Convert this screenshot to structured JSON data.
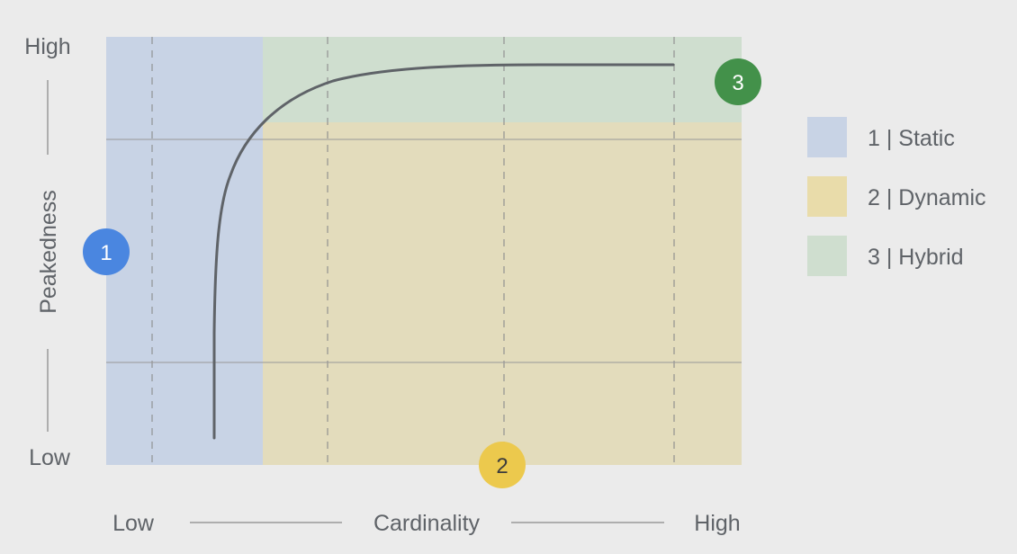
{
  "y_axis": {
    "label": "Peakedness",
    "high_label": "High",
    "low_label": "Low"
  },
  "x_axis": {
    "label": "Cardinality",
    "low_label": "Low",
    "high_label": "High"
  },
  "zones": [
    {
      "id": "1",
      "name": "Static",
      "color": "#c8d3e5",
      "badge_color": "#4a86e0",
      "badge_text_color": "#ffffff"
    },
    {
      "id": "2",
      "name": "Dynamic",
      "color": "#e3dcbc",
      "badge_color": "#ecc94d",
      "badge_text_color": "#3c3c3c"
    },
    {
      "id": "3",
      "name": "Hybrid",
      "color": "#cfdecf",
      "badge_color": "#43914a",
      "badge_text_color": "#ffffff"
    }
  ],
  "legend": [
    {
      "label": "1 | Static",
      "color": "#c8d3e5"
    },
    {
      "label": "2 | Dynamic",
      "color": "#e9dcaa"
    },
    {
      "label": "3 | Hybrid",
      "color": "#cfdecf"
    }
  ],
  "curve_color": "#5f6368"
}
